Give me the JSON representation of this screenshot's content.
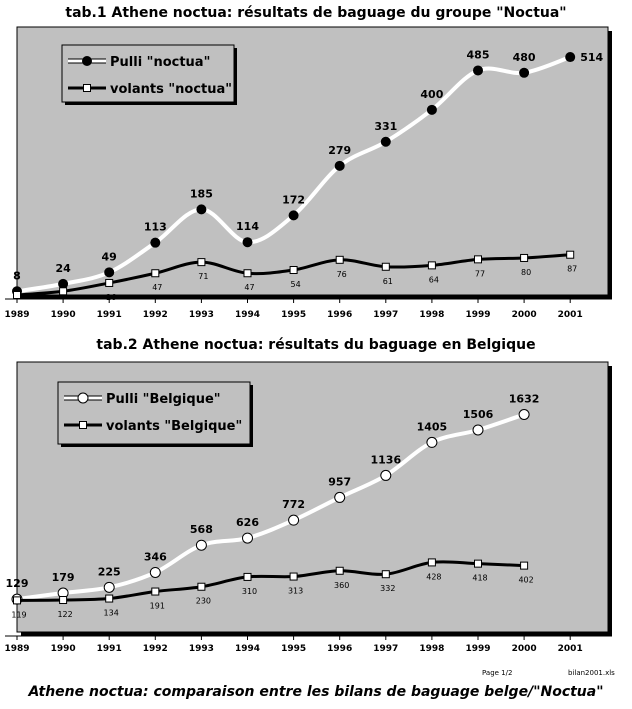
{
  "chart_data": [
    {
      "type": "line",
      "title": "tab.1  Athene noctua: résultats de baguage du groupe \"Noctua\"",
      "categories": [
        "1989",
        "1990",
        "1991",
        "1992",
        "1993",
        "1994",
        "1995",
        "1996",
        "1997",
        "1998",
        "1999",
        "2000",
        "2001"
      ],
      "ylim": [
        0,
        540
      ],
      "grid": false,
      "legend_position": "top-left",
      "background": "#c0c0c0",
      "series": [
        {
          "name": "Pulli \"noctua\"",
          "values": [
            8,
            24,
            49,
            113,
            185,
            114,
            172,
            279,
            331,
            400,
            485,
            480,
            514
          ],
          "color": "#ffffff",
          "marker": "filled-circle"
        },
        {
          "name": "volants \"noctua\"",
          "values": [
            0,
            8,
            26,
            47,
            71,
            47,
            54,
            76,
            61,
            64,
            77,
            80,
            87
          ],
          "color": "#000000",
          "marker": "open-square"
        }
      ],
      "bottom_labels_visible": [
        null,
        null,
        "26",
        "47",
        "71",
        "47",
        "54",
        "76",
        "61",
        "64",
        "77",
        "80",
        "87"
      ]
    },
    {
      "type": "line",
      "title": "tab.2  Athene noctua: résultats du baguage en Belgique",
      "categories": [
        "1989",
        "1990",
        "1991",
        "1992",
        "1993",
        "1994",
        "1995",
        "1996",
        "1997",
        "1998",
        "1999",
        "2000",
        "2001"
      ],
      "ylim": [
        0,
        1750
      ],
      "grid": false,
      "legend_position": "top-left",
      "background": "#c0c0c0",
      "series": [
        {
          "name": "Pulli \"Belgique\"",
          "values": [
            129,
            179,
            225,
            346,
            568,
            626,
            772,
            957,
            1136,
            1405,
            1506,
            1632,
            null
          ],
          "color": "#ffffff",
          "marker": "open-circle"
        },
        {
          "name": "volants \"Belgique\"",
          "values": [
            119,
            122,
            134,
            191,
            230,
            310,
            313,
            360,
            332,
            428,
            418,
            402,
            null
          ],
          "color": "#000000",
          "marker": "open-square"
        }
      ]
    }
  ],
  "footer": {
    "title": "Athene noctua: comparaison entre les bilans de baguage belge/\"Noctua\"",
    "page": "Page 1/2",
    "file": "bilan2001.xls"
  }
}
